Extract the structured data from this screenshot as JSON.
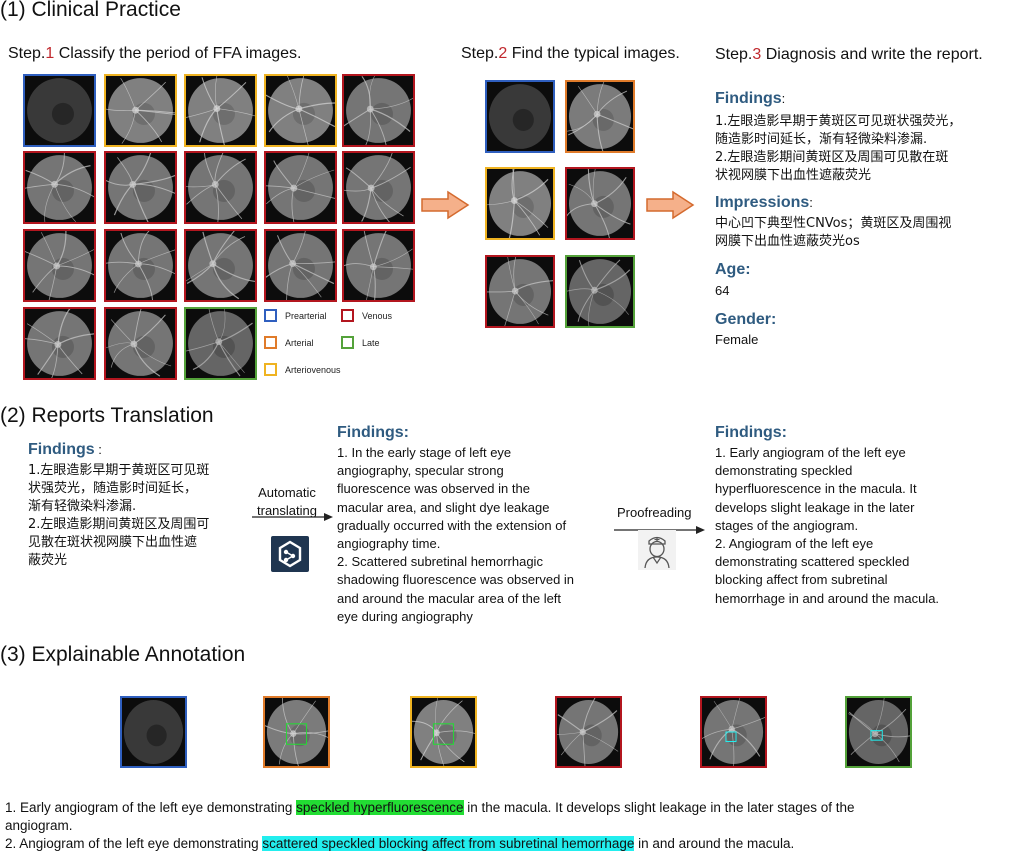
{
  "colors": {
    "prearterial": "#2f5fbf",
    "arterial": "#e07b2a",
    "arteriovenous": "#efb321",
    "venous": "#b3161f",
    "late": "#54a23a",
    "heading_blue": "#2f5b80",
    "step_red": "#c0282d",
    "arrow_fill": "#f5b08a",
    "arrow_stroke": "#d46a2e",
    "highlight_green": "#22dd33",
    "highlight_cyan": "#22eeee"
  },
  "section1": {
    "title": "(1) Clinical Practice",
    "step1": {
      "prefix": "Step.",
      "num": "1",
      "text": " Classify the period of FFA images."
    },
    "step2": {
      "prefix": "Step.",
      "num": "2",
      "text": " Find the typical images."
    },
    "step3": {
      "prefix": "Step.",
      "num": "3",
      "text": " Diagnosis and write the report."
    },
    "grid_phases": [
      [
        "prearterial",
        "arteriovenous",
        "arteriovenous",
        "arteriovenous",
        "venous"
      ],
      [
        "venous",
        "venous",
        "venous",
        "venous",
        "venous"
      ],
      [
        "venous",
        "venous",
        "venous",
        "venous",
        "venous"
      ],
      [
        "venous",
        "venous",
        "late"
      ]
    ],
    "typical_phases": [
      [
        "prearterial",
        "arterial"
      ],
      [
        "arteriovenous",
        "venous"
      ],
      [
        "venous",
        "late"
      ]
    ],
    "legend": {
      "prearterial": "Prearterial",
      "venous": "Venous",
      "arterial": "Arterial",
      "late": "Late",
      "arteriovenous": "Arteriovenous"
    },
    "report": {
      "findings_label": "Findings",
      "findings_colon": ":",
      "findings_lines": [
        "1.左眼造影早期于黄斑区可见斑状强荧光，",
        "随造影时间延长，渐有轻微染料渗漏.",
        "2.左眼造影期间黄斑区及周围可见散在斑",
        "状视网膜下出血性遮蔽荧光"
      ],
      "impressions_label": "Impressions",
      "impressions_colon": ":",
      "impressions_lines": [
        "中心凹下典型性CNVos；黄斑区及周围视",
        "网膜下出血性遮蔽荧光os"
      ],
      "age_label": "Age:",
      "age_value": "64",
      "gender_label": "Gender:",
      "gender_value": "Female"
    }
  },
  "section2": {
    "title": "(2) Reports Translation",
    "left_label": "Findings",
    "left_colon": " :",
    "left_lines": [
      "1.左眼造影早期于黄斑区可见斑",
      "状强荧光，随造影时间延长，",
      "渐有轻微染料渗漏.",
      "2.左眼造影期间黄斑区及周围可",
      "见散在斑状视网膜下出血性遮",
      "蔽荧光"
    ],
    "auto_label_1": "Automatic",
    "auto_label_2": "translating",
    "mid_label": "Findings:",
    "mid_lines": [
      "1. In the early stage of left eye",
      "angiography, specular strong",
      "fluorescence was observed in the",
      "macular area, and slight dye leakage",
      "gradually occurred with the extension of",
      "angiography time.",
      "2. Scattered subretinal hemorrhagic",
      "shadowing fluorescence was observed in",
      "and around the macular area of the left",
      "eye during angiography"
    ],
    "proof_label": "Proofreading",
    "right_label": "Findings:",
    "right_lines": [
      "1. Early angiogram of the left eye",
      "demonstrating speckled",
      "hyperfluorescence in the macula.  It",
      "develops slight leakage in the later",
      "stages of the angiogram.",
      "2. Angiogram of the left eye",
      "demonstrating scattered speckled",
      "blocking affect from subretinal",
      "hemorrhage in and around the macula."
    ]
  },
  "section3": {
    "title": "(3) Explainable Annotation",
    "phases": [
      "prearterial",
      "arterial",
      "arteriovenous",
      "venous",
      "venous",
      "late"
    ],
    "line1_a": "1. Early angiogram of the left eye demonstrating ",
    "line1_hl": "speckled hyperfluorescence",
    "line1_b": " in the macula. It develops slight leakage in the later stages of the",
    "line1_c": "angiogram.",
    "line2_a": "2. Angiogram of the left eye demonstrating ",
    "line2_hl": "scattered speckled blocking affect from subretinal hemorrhage",
    "line2_b": " in and around the macula."
  }
}
